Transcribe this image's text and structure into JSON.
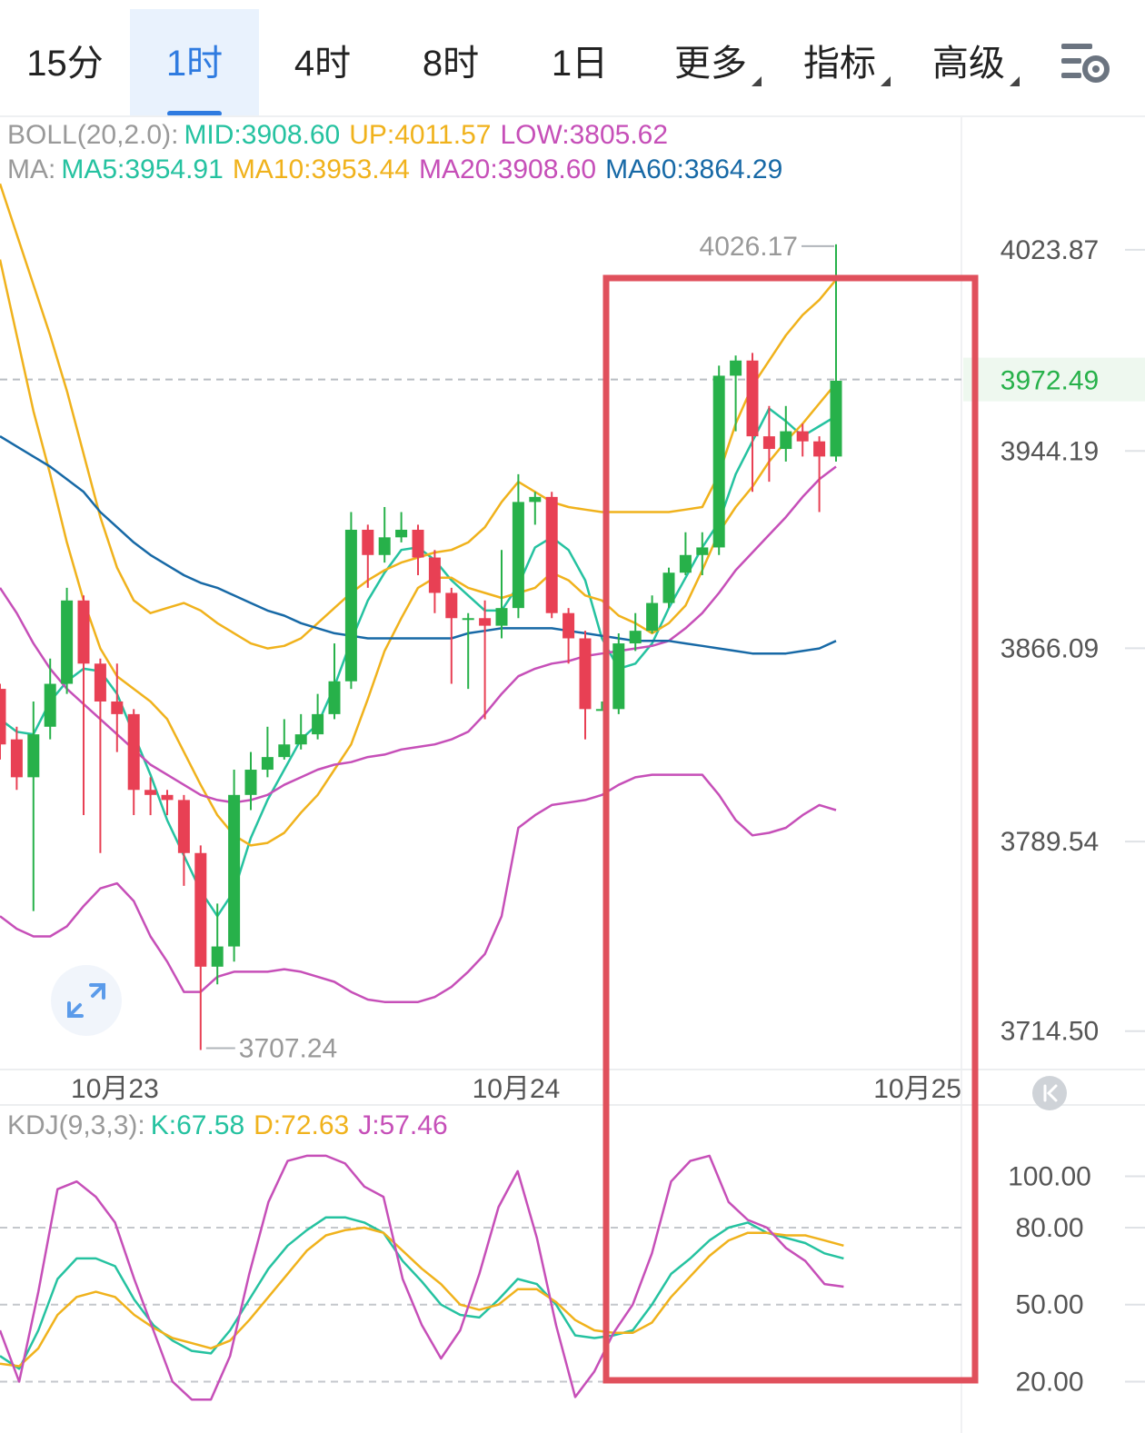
{
  "tabs": [
    {
      "label": "15分",
      "active": false,
      "has_caret": false
    },
    {
      "label": "1时",
      "active": true,
      "has_caret": false
    },
    {
      "label": "4时",
      "active": false,
      "has_caret": false
    },
    {
      "label": "8时",
      "active": false,
      "has_caret": false
    },
    {
      "label": "1日",
      "active": false,
      "has_caret": false
    },
    {
      "label": "更多",
      "active": false,
      "has_caret": true
    },
    {
      "label": "指标",
      "active": false,
      "has_caret": true
    },
    {
      "label": "高级",
      "active": false,
      "has_caret": true
    }
  ],
  "icons": {
    "settings": "chart-settings-icon",
    "expand": "expand-arrows-icon",
    "scroll_latest": "scroll-to-latest-icon"
  },
  "colors": {
    "up": "#27b14a",
    "down": "#e84054",
    "mid": "#f0b21c",
    "band": "#c64fb8",
    "ma5": "#25c2a0",
    "ma60": "#1769a6",
    "kdj_k": "#25c2a0",
    "kdj_d": "#f0b21c",
    "kdj_j": "#c64fb8",
    "highlight": "#e0505c",
    "accent": "#2f7be0"
  },
  "legend_boll": {
    "prefix": "BOLL(20,2.0):",
    "mid": "MID:3908.60",
    "up": "UP:4011.57",
    "low": "LOW:3805.62"
  },
  "legend_ma": {
    "prefix": "MA:",
    "ma5": "MA5:3954.91",
    "ma10": "MA10:3953.44",
    "ma20": "MA20:3908.60",
    "ma60": "MA60:3864.29"
  },
  "legend_kdj": {
    "prefix": "KDJ(9,3,3):",
    "k": "K:67.58",
    "d": "D:72.63",
    "j": "J:57.46"
  },
  "chart_data": [
    {
      "type": "candlestick",
      "title": "",
      "price_axis_ticks": [
        "4023.87",
        "3944.19",
        "3866.09",
        "3789.54",
        "3714.50"
      ],
      "y_range": [
        3700,
        4040
      ],
      "current_price": "3972.49",
      "high_marker": "4026.17",
      "low_marker": "3707.24",
      "x_labels": [
        "10月23",
        "10月24",
        "10月25"
      ],
      "x_label_index": [
        6,
        30,
        54
      ],
      "candles": [
        [
          3850,
          3828,
          3852,
          3822
        ],
        [
          3830,
          3815,
          3835,
          3810
        ],
        [
          3815,
          3832,
          3845,
          3762
        ],
        [
          3835,
          3852,
          3862,
          3830
        ],
        [
          3852,
          3885,
          3890,
          3848
        ],
        [
          3885,
          3860,
          3887,
          3800
        ],
        [
          3860,
          3845,
          3862,
          3785
        ],
        [
          3845,
          3840,
          3860,
          3825
        ],
        [
          3840,
          3810,
          3842,
          3800
        ],
        [
          3810,
          3808,
          3815,
          3800
        ],
        [
          3808,
          3806,
          3810,
          3800
        ],
        [
          3806,
          3785,
          3808,
          3772
        ],
        [
          3785,
          3740,
          3788,
          3707
        ],
        [
          3740,
          3748,
          3765,
          3733
        ],
        [
          3748,
          3808,
          3818,
          3742
        ],
        [
          3808,
          3818,
          3825,
          3802
        ],
        [
          3818,
          3823,
          3835,
          3815
        ],
        [
          3823,
          3828,
          3838,
          3822
        ],
        [
          3828,
          3832,
          3840,
          3826
        ],
        [
          3832,
          3840,
          3848,
          3830
        ],
        [
          3840,
          3853,
          3868,
          3838
        ],
        [
          3853,
          3913,
          3920,
          3850
        ],
        [
          3913,
          3903,
          3915,
          3890
        ],
        [
          3903,
          3910,
          3922,
          3900
        ],
        [
          3910,
          3913,
          3920,
          3908
        ],
        [
          3913,
          3902,
          3915,
          3895
        ],
        [
          3902,
          3888,
          3905,
          3880
        ],
        [
          3888,
          3878,
          3890,
          3852
        ],
        [
          3878,
          3878,
          3880,
          3850
        ],
        [
          3878,
          3875,
          3885,
          3838
        ],
        [
          3875,
          3882,
          3905,
          3870
        ],
        [
          3882,
          3924,
          3935,
          3878
        ],
        [
          3924,
          3926,
          3928,
          3915
        ],
        [
          3926,
          3880,
          3928,
          3878
        ],
        [
          3880,
          3870,
          3882,
          3860
        ],
        [
          3870,
          3842,
          3873,
          3830
        ],
        [
          3842,
          3842,
          3845,
          3842
        ],
        [
          3842,
          3868,
          3872,
          3840
        ],
        [
          3868,
          3873,
          3880,
          3865
        ],
        [
          3873,
          3884,
          3887,
          3872
        ],
        [
          3884,
          3896,
          3898,
          3882
        ],
        [
          3896,
          3903,
          3912,
          3895
        ],
        [
          3903,
          3906,
          3912,
          3895
        ],
        [
          3906,
          3974,
          3978,
          3903
        ],
        [
          3974,
          3980,
          3982,
          3952
        ],
        [
          3980,
          3950,
          3983,
          3928
        ],
        [
          3950,
          3945,
          3962,
          3932
        ],
        [
          3945,
          3952,
          3962,
          3940
        ],
        [
          3952,
          3948,
          3955,
          3942
        ],
        [
          3948,
          3942,
          3950,
          3920
        ],
        [
          3942,
          3972,
          4026,
          3940
        ]
      ],
      "series": [
        {
          "name": "MA5",
          "color_key": "ma5",
          "values": [
            3838,
            3833,
            3832,
            3845,
            3853,
            3858,
            3857,
            3848,
            3832,
            3816,
            3798,
            3784,
            3770,
            3760,
            3770,
            3791,
            3806,
            3818,
            3830,
            3836,
            3851,
            3869,
            3885,
            3896,
            3905,
            3906,
            3901,
            3893,
            3887,
            3881,
            3881,
            3891,
            3906,
            3910,
            3905,
            3893,
            3870,
            3858,
            3860,
            3868,
            3882,
            3894,
            3906,
            3916,
            3935,
            3948,
            3961,
            3956,
            3950,
            3954,
            3958
          ]
        },
        {
          "name": "MA10",
          "color_key": "mid",
          "values": [
            4020,
            3990,
            3960,
            3935,
            3908,
            3885,
            3866,
            3855,
            3850,
            3845,
            3838,
            3825,
            3812,
            3800,
            3792,
            3788,
            3789,
            3793,
            3801,
            3808,
            3818,
            3828,
            3846,
            3865,
            3878,
            3890,
            3894,
            3894,
            3890,
            3888,
            3886,
            3888,
            3890,
            3896,
            3893,
            3887,
            3885,
            3879,
            3876,
            3872,
            3876,
            3883,
            3897,
            3912,
            3922,
            3930,
            3940,
            3948,
            3955,
            3963,
            3971
          ]
        },
        {
          "name": "MA20",
          "color_key": "band",
          "values": [
            3890,
            3880,
            3868,
            3858,
            3850,
            3844,
            3838,
            3832,
            3826,
            3820,
            3816,
            3812,
            3808,
            3806,
            3805,
            3806,
            3808,
            3812,
            3815,
            3818,
            3820,
            3821,
            3823,
            3824,
            3826,
            3827,
            3828,
            3830,
            3833,
            3840,
            3848,
            3855,
            3858,
            3860,
            3861,
            3863,
            3864,
            3865,
            3866,
            3867,
            3869,
            3874,
            3880,
            3888,
            3897,
            3904,
            3911,
            3918,
            3926,
            3933,
            3938
          ]
        },
        {
          "name": "UP",
          "color_key": "mid",
          "values": [
            4050,
            4030,
            4010,
            3990,
            3968,
            3943,
            3918,
            3898,
            3885,
            3880,
            3882,
            3884,
            3881,
            3876,
            3872,
            3868,
            3866,
            3867,
            3870,
            3876,
            3882,
            3888,
            3893,
            3897,
            3900,
            3902,
            3904,
            3905,
            3908,
            3914,
            3924,
            3932,
            3928,
            3924,
            3922,
            3921,
            3920,
            3920,
            3920,
            3920,
            3920,
            3921,
            3922,
            3935,
            3955,
            3970,
            3980,
            3990,
            3998,
            4004,
            4012
          ]
        },
        {
          "name": "LOW",
          "color_key": "band",
          "values": [
            3760,
            3755,
            3752,
            3752,
            3756,
            3764,
            3771,
            3773,
            3766,
            3752,
            3742,
            3730,
            3730,
            3736,
            3738,
            3738,
            3738,
            3739,
            3738,
            3736,
            3734,
            3730,
            3727,
            3726,
            3726,
            3726,
            3728,
            3732,
            3738,
            3745,
            3760,
            3795,
            3800,
            3804,
            3805,
            3806,
            3808,
            3812,
            3815,
            3816,
            3816,
            3816,
            3816,
            3808,
            3798,
            3792,
            3793,
            3795,
            3800,
            3804,
            3802
          ]
        },
        {
          "name": "MA60",
          "color_key": "ma60",
          "values": [
            3950,
            3946,
            3942,
            3938,
            3933,
            3928,
            3920,
            3914,
            3908,
            3903,
            3899,
            3895,
            3892,
            3890,
            3887,
            3884,
            3881,
            3879,
            3876,
            3874,
            3872,
            3871,
            3870,
            3870,
            3870,
            3870,
            3870,
            3870,
            3872,
            3873,
            3874,
            3874,
            3874,
            3874,
            3873,
            3872,
            3871,
            3870,
            3869,
            3869,
            3869,
            3868,
            3867,
            3866,
            3865,
            3864,
            3864,
            3864,
            3865,
            3866,
            3869
          ]
        }
      ]
    },
    {
      "type": "line",
      "title": "",
      "y_ticks": [
        "100.00",
        "80.00",
        "50.00",
        "20.00"
      ],
      "y_range": [
        6,
        114
      ],
      "series": [
        {
          "name": "K",
          "color_key": "kdj_k",
          "values": [
            30,
            25,
            40,
            60,
            68,
            68,
            65,
            52,
            42,
            36,
            32,
            31,
            40,
            52,
            64,
            73,
            79,
            84,
            84,
            82,
            78,
            67,
            59,
            50,
            46,
            45,
            52,
            60,
            58,
            50,
            38,
            37,
            38,
            40,
            50,
            62,
            68,
            75,
            80,
            82,
            78,
            76,
            74,
            70,
            68
          ]
        },
        {
          "name": "D",
          "color_key": "kdj_d",
          "values": [
            27,
            26,
            33,
            46,
            53,
            55,
            53,
            46,
            41,
            37,
            35,
            33,
            36,
            44,
            53,
            62,
            71,
            77,
            79,
            80,
            78,
            71,
            64,
            58,
            50,
            48,
            50,
            56,
            56,
            51,
            44,
            40,
            39,
            39,
            43,
            53,
            61,
            69,
            75,
            78,
            78,
            77,
            77,
            75,
            73
          ]
        },
        {
          "name": "J",
          "color_key": "kdj_j",
          "values": [
            40,
            20,
            55,
            95,
            98,
            92,
            82,
            60,
            40,
            20,
            13,
            13,
            30,
            62,
            90,
            106,
            108,
            108,
            105,
            96,
            92,
            60,
            42,
            29,
            40,
            62,
            88,
            102,
            76,
            42,
            14,
            24,
            39,
            50,
            70,
            98,
            106,
            108,
            90,
            83,
            80,
            72,
            67,
            58,
            57
          ]
        }
      ]
    }
  ]
}
